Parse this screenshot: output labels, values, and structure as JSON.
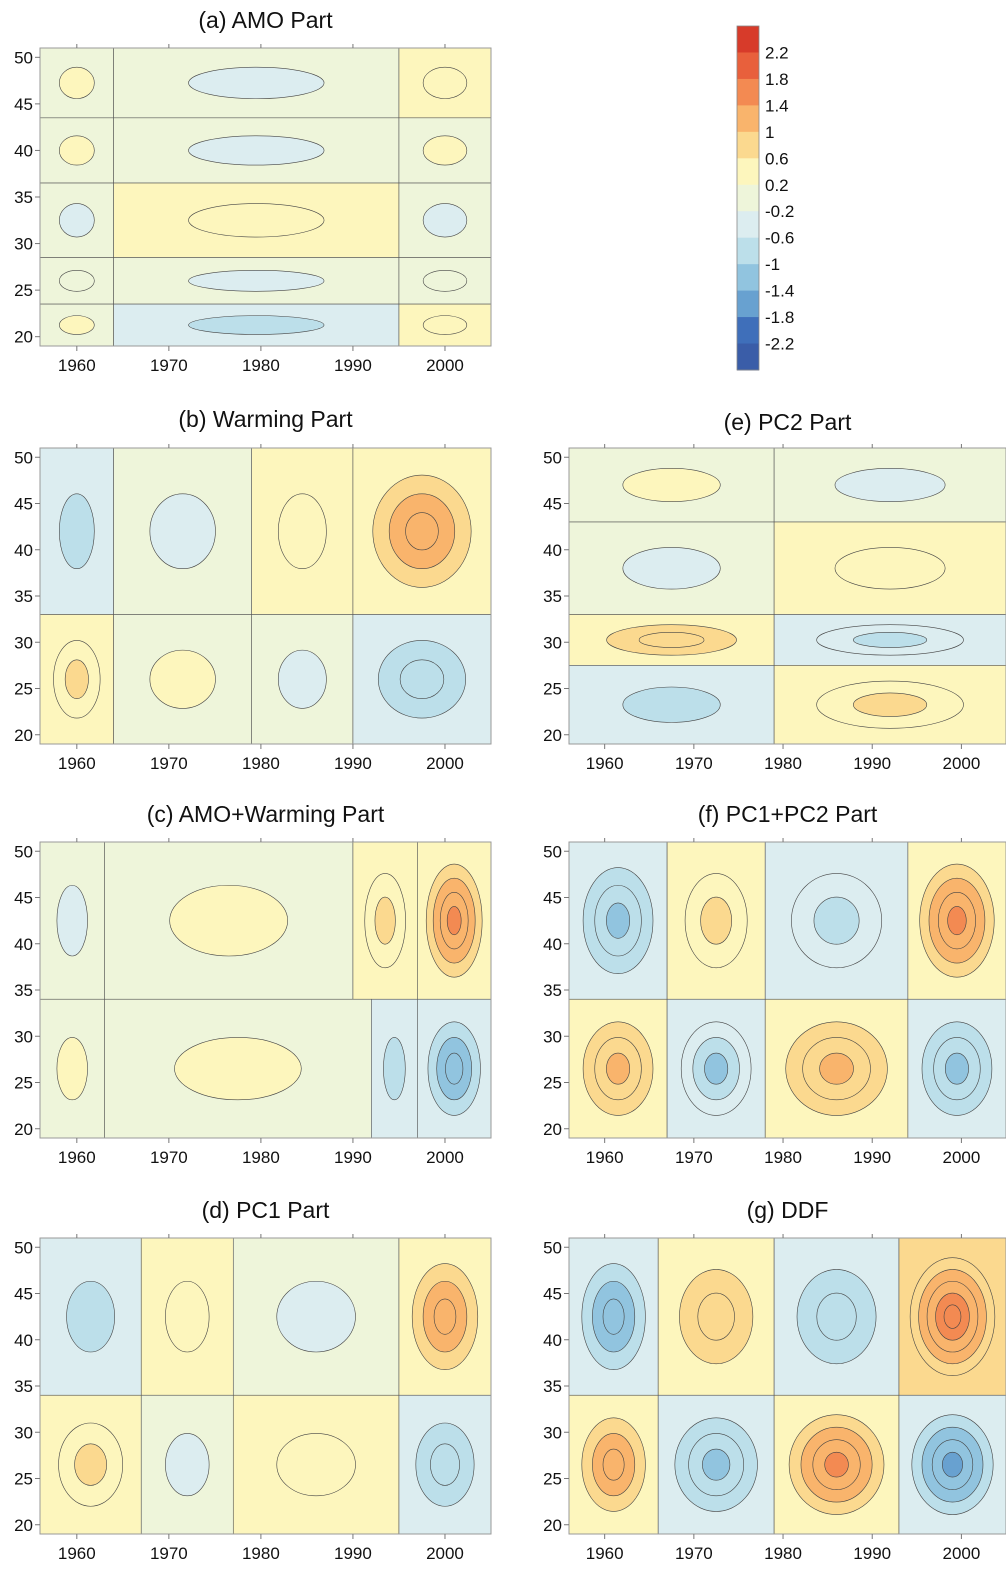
{
  "chart_data": {
    "type": "heatmap",
    "x_ticks": [
      1960,
      1970,
      1980,
      1990,
      2000
    ],
    "y_ticks": [
      20,
      25,
      30,
      35,
      40,
      45,
      50
    ],
    "xlim": [
      1956,
      2005
    ],
    "ylim": [
      19,
      51
    ],
    "colorbar": {
      "ticks": [
        "2.2",
        "1.8",
        "1.4",
        "1",
        "0.6",
        "0.2",
        "-0.2",
        "-0.6",
        "-1",
        "-1.4",
        "-1.8",
        "-2.2"
      ],
      "levels": [
        2.2,
        1.8,
        1.4,
        1.0,
        0.6,
        0.2,
        -0.2,
        -0.6,
        -1.0,
        -1.4,
        -1.8,
        -2.2
      ],
      "colors": [
        "#d73b2a",
        "#e8603c",
        "#f38a52",
        "#f9b46c",
        "#fbd98f",
        "#fdf6bd",
        "#eef5da",
        "#dcedf0",
        "#bcdfea",
        "#91c4df",
        "#68a1d0",
        "#3f6fba",
        "#3a5da8"
      ]
    },
    "panels": [
      {
        "id": "a",
        "title": "(a) AMO Part",
        "bands": [
          {
            "y": [
              43.5,
              51
            ],
            "segments": [
              {
                "x": [
                  1956,
                  1964
                ],
                "v": 0.3
              },
              {
                "x": [
                  1964,
                  1995
                ],
                "v": -0.5
              },
              {
                "x": [
                  1995,
                  2005
                ],
                "v": 0.6
              }
            ]
          },
          {
            "y": [
              36.5,
              43.5
            ],
            "segments": [
              {
                "x": [
                  1956,
                  1964
                ],
                "v": 0.3
              },
              {
                "x": [
                  1964,
                  1995
                ],
                "v": -0.4
              },
              {
                "x": [
                  1995,
                  2005
                ],
                "v": 0.5
              }
            ]
          },
          {
            "y": [
              28.5,
              36.5
            ],
            "segments": [
              {
                "x": [
                  1956,
                  1964
                ],
                "v": -0.3
              },
              {
                "x": [
                  1964,
                  1995
                ],
                "v": 0.6
              },
              {
                "x": [
                  1995,
                  2005
                ],
                "v": -0.3
              }
            ]
          },
          {
            "y": [
              23.5,
              28.5
            ],
            "segments": [
              {
                "x": [
                  1956,
                  1964
                ],
                "v": 0.1
              },
              {
                "x": [
                  1964,
                  1995
                ],
                "v": -0.3
              },
              {
                "x": [
                  1995,
                  2005
                ],
                "v": 0.2
              }
            ]
          },
          {
            "y": [
              19,
              23.5
            ],
            "segments": [
              {
                "x": [
                  1956,
                  1964
                ],
                "v": 0.4
              },
              {
                "x": [
                  1964,
                  1995
                ],
                "v": -0.6
              },
              {
                "x": [
                  1995,
                  2005
                ],
                "v": 0.6
              }
            ]
          }
        ]
      },
      {
        "id": "b",
        "title": "(b) Warming Part",
        "bands": [
          {
            "y": [
              33,
              51
            ],
            "segments": [
              {
                "x": [
                  1956,
                  1964
                ],
                "v": -0.6
              },
              {
                "x": [
                  1964,
                  1979
                ],
                "v": -0.3
              },
              {
                "x": [
                  1979,
                  1990
                ],
                "v": 0.6
              },
              {
                "x": [
                  1990,
                  2005
                ],
                "v": 1.4
              }
            ]
          },
          {
            "y": [
              19,
              33
            ],
            "segments": [
              {
                "x": [
                  1956,
                  1964
                ],
                "v": 0.8
              },
              {
                "x": [
                  1964,
                  1979
                ],
                "v": 0.4
              },
              {
                "x": [
                  1979,
                  1990
                ],
                "v": -0.3
              },
              {
                "x": [
                  1990,
                  2005
                ],
                "v": -0.9
              }
            ]
          }
        ]
      },
      {
        "id": "c",
        "title": "(c) AMO+Warming Part",
        "bands": [
          {
            "y": [
              34,
              51
            ],
            "segments": [
              {
                "x": [
                  1956,
                  1963
                ],
                "v": -0.5
              },
              {
                "x": [
                  1963,
                  1990
                ],
                "v": 0.25
              },
              {
                "x": [
                  1990,
                  1997
                ],
                "v": 0.8
              },
              {
                "x": [
                  1997,
                  2005
                ],
                "v": 1.6
              }
            ]
          },
          {
            "y": [
              19,
              34
            ],
            "segments": [
              {
                "x": [
                  1956,
                  1963
                ],
                "v": 0.5
              },
              {
                "x": [
                  1963,
                  1992
                ],
                "v": 0.3
              },
              {
                "x": [
                  1992,
                  1997
                ],
                "v": -0.6
              },
              {
                "x": [
                  1997,
                  2005
                ],
                "v": -1.3
              }
            ]
          }
        ]
      },
      {
        "id": "d",
        "title": "(d) PC1 Part",
        "bands": [
          {
            "y": [
              34,
              51
            ],
            "segments": [
              {
                "x": [
                  1956,
                  1967
                ],
                "v": -0.6
              },
              {
                "x": [
                  1967,
                  1977
                ],
                "v": 0.6
              },
              {
                "x": [
                  1977,
                  1995
                ],
                "v": -0.4
              },
              {
                "x": [
                  1995,
                  2005
                ],
                "v": 1.4
              }
            ]
          },
          {
            "y": [
              19,
              34
            ],
            "segments": [
              {
                "x": [
                  1956,
                  1967
                ],
                "v": 0.8
              },
              {
                "x": [
                  1967,
                  1977
                ],
                "v": -0.3
              },
              {
                "x": [
                  1977,
                  1995
                ],
                "v": 0.6
              },
              {
                "x": [
                  1995,
                  2005
                ],
                "v": -0.9
              }
            ]
          }
        ]
      },
      {
        "id": "e",
        "title": "(e) PC2 Part",
        "bands": [
          {
            "y": [
              43,
              51
            ],
            "segments": [
              {
                "x": [
                  1956,
                  1979
                ],
                "v": 0.5
              },
              {
                "x": [
                  1979,
                  2005
                ],
                "v": -0.4
              }
            ]
          },
          {
            "y": [
              33,
              43
            ],
            "segments": [
              {
                "x": [
                  1956,
                  1979
                ],
                "v": -0.5
              },
              {
                "x": [
                  1979,
                  2005
                ],
                "v": 0.6
              }
            ]
          },
          {
            "y": [
              27.5,
              33
            ],
            "segments": [
              {
                "x": [
                  1956,
                  1979
                ],
                "v": 0.9
              },
              {
                "x": [
                  1979,
                  2005
                ],
                "v": -0.8
              }
            ]
          },
          {
            "y": [
              19,
              27.5
            ],
            "segments": [
              {
                "x": [
                  1956,
                  1979
                ],
                "v": -0.6
              },
              {
                "x": [
                  1979,
                  2005
                ],
                "v": 0.8
              }
            ]
          }
        ]
      },
      {
        "id": "f",
        "title": "(f) PC1+PC2 Part",
        "bands": [
          {
            "y": [
              34,
              51
            ],
            "segments": [
              {
                "x": [
                  1956,
                  1967
                ],
                "v": -1.1
              },
              {
                "x": [
                  1967,
                  1978
                ],
                "v": 0.8
              },
              {
                "x": [
                  1978,
                  1994
                ],
                "v": -0.8
              },
              {
                "x": [
                  1994,
                  2005
                ],
                "v": 1.6
              }
            ]
          },
          {
            "y": [
              19,
              34
            ],
            "segments": [
              {
                "x": [
                  1956,
                  1967
                ],
                "v": 1.2
              },
              {
                "x": [
                  1967,
                  1978
                ],
                "v": -1.0
              },
              {
                "x": [
                  1978,
                  1994
                ],
                "v": 1.2
              },
              {
                "x": [
                  1994,
                  2005
                ],
                "v": -1.1
              }
            ]
          }
        ]
      },
      {
        "id": "g",
        "title": "(g) DDF",
        "bands": [
          {
            "y": [
              34,
              51
            ],
            "segments": [
              {
                "x": [
                  1956,
                  1966
                ],
                "v": -1.3
              },
              {
                "x": [
                  1966,
                  1979
                ],
                "v": 0.9
              },
              {
                "x": [
                  1979,
                  1993
                ],
                "v": -0.9
              },
              {
                "x": [
                  1993,
                  2005
                ],
                "v": 1.8
              }
            ]
          },
          {
            "y": [
              19,
              34
            ],
            "segments": [
              {
                "x": [
                  1956,
                  1966
                ],
                "v": 1.4
              },
              {
                "x": [
                  1966,
                  1979
                ],
                "v": -1.2
              },
              {
                "x": [
                  1979,
                  1993
                ],
                "v": 1.5
              },
              {
                "x": [
                  1993,
                  2005
                ],
                "v": -1.5
              }
            ]
          }
        ]
      }
    ]
  }
}
